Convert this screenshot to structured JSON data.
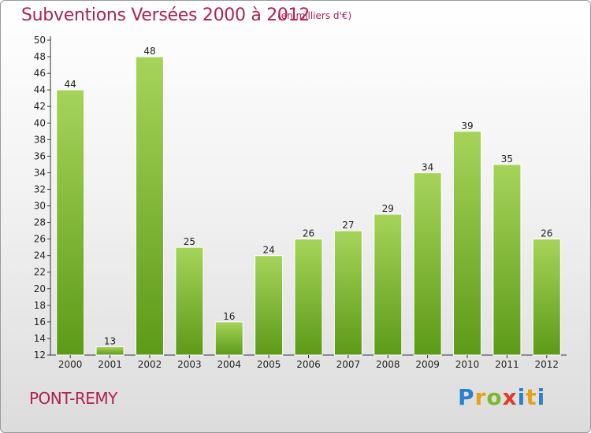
{
  "title": "Subventions Versées 2000 à 2012",
  "subtitle": "(en milliers d'€)",
  "commune": "PONT-REMY",
  "logo": {
    "p": "P",
    "r": "r",
    "o": "o",
    "x": "x",
    "i": "i",
    "t": "t",
    "i2": "i"
  },
  "colors": {
    "title": "#b0224f",
    "bar_light": "#a6d45a",
    "bar_dark": "#5d9a18",
    "axis": "#333333"
  },
  "chart_data": {
    "type": "bar",
    "title": "Subventions Versées 2000 à 2012",
    "subtitle": "(en milliers d'€)",
    "categories": [
      "2000",
      "2001",
      "2002",
      "2003",
      "2004",
      "2005",
      "2006",
      "2007",
      "2008",
      "2009",
      "2010",
      "2011",
      "2012"
    ],
    "values": [
      44,
      13,
      48,
      25,
      16,
      24,
      26,
      27,
      29,
      34,
      39,
      35,
      26
    ],
    "ylim": [
      12,
      50
    ],
    "yticks": [
      12,
      14,
      16,
      18,
      20,
      22,
      24,
      26,
      28,
      30,
      32,
      34,
      36,
      38,
      40,
      42,
      44,
      46,
      48,
      50
    ],
    "xlabel": "",
    "ylabel": "",
    "grid": false,
    "legend": "none"
  }
}
